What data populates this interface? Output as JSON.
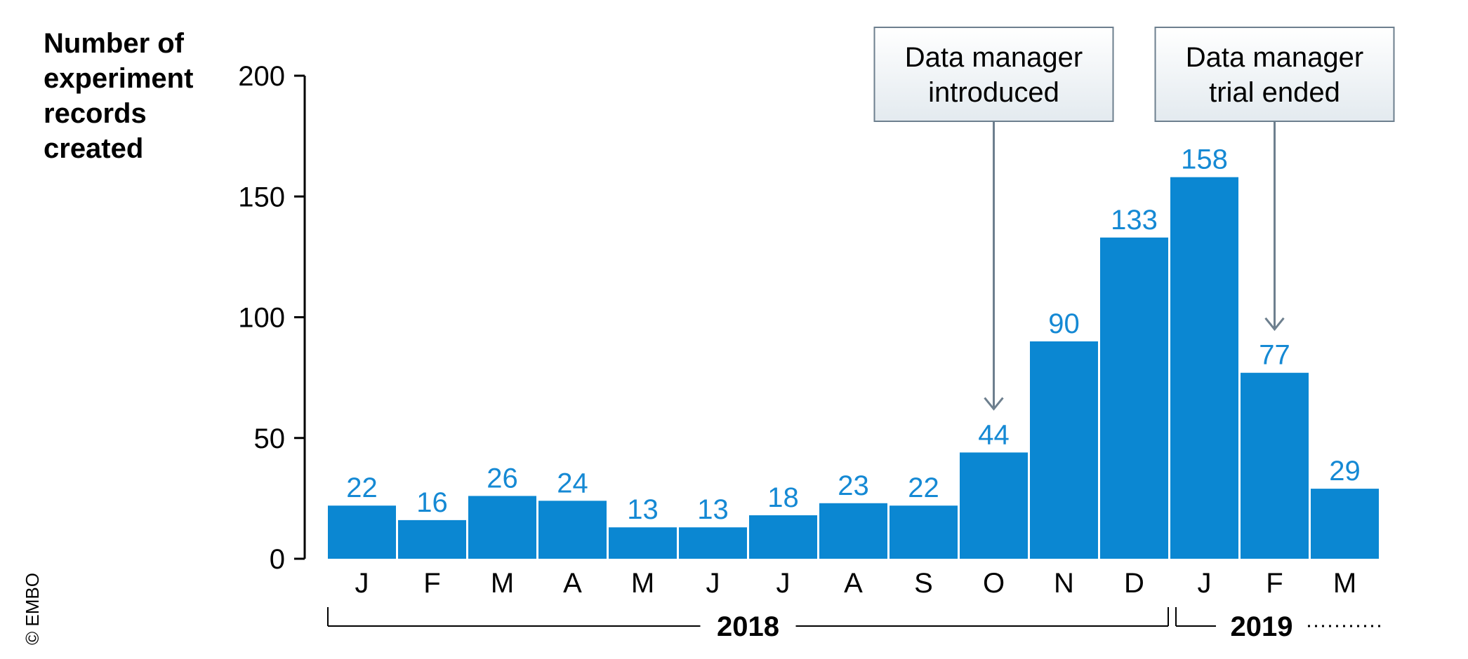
{
  "chart_data": {
    "type": "bar",
    "ylabel": [
      "Number of",
      "experiment",
      "records",
      "created"
    ],
    "ylim": [
      0,
      200
    ],
    "yticks": [
      0,
      50,
      100,
      150,
      200
    ],
    "categories": [
      "J",
      "F",
      "M",
      "A",
      "M",
      "J",
      "J",
      "A",
      "S",
      "O",
      "N",
      "D",
      "J",
      "F",
      "M"
    ],
    "values": [
      22,
      16,
      26,
      24,
      13,
      13,
      18,
      23,
      22,
      44,
      90,
      133,
      158,
      77,
      29
    ],
    "years": [
      {
        "label": "2018",
        "from": 0,
        "to": 11
      },
      {
        "label": "2019",
        "from": 12,
        "to": 14,
        "continues": true
      }
    ],
    "annotations": [
      {
        "lines": [
          "Data manager",
          "introduced"
        ],
        "index": 9
      },
      {
        "lines": [
          "Data manager",
          "trial ended"
        ],
        "index": 13
      }
    ],
    "grid": false,
    "bar_color": "#0b87d2",
    "value_label_color": "#1589d4",
    "annotation_box_color": "#eef2f5",
    "annotation_line_color": "#6d7f8e"
  },
  "credit": "© EMBO"
}
